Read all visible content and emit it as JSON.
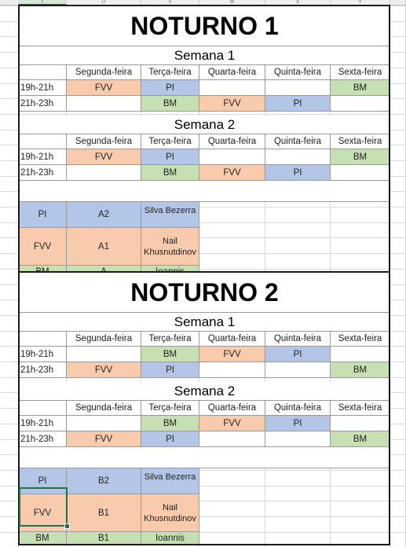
{
  "column_headers": [
    "T",
    "U",
    "V",
    "W",
    "X",
    "Y"
  ],
  "day_headers": [
    "Segunda-feira",
    "Terça-feira",
    "Quarta-feira",
    "Quinta-feira",
    "Sexta-feira"
  ],
  "time_slots": [
    "19h-21h",
    "21h-23h"
  ],
  "colors": {
    "orange": "#f8cbad",
    "blue": "#b4c6e7",
    "green": "#c6e0b4"
  },
  "sections": [
    {
      "title": "NOTURNO 1",
      "weeks": [
        {
          "label": "Semana 1",
          "rows": [
            [
              "FVV",
              "PI",
              "",
              "",
              "BM"
            ],
            [
              "",
              "BM",
              "FVV",
              "PI",
              ""
            ]
          ]
        },
        {
          "label": "Semana 2",
          "rows": [
            [
              "FVV",
              "PI",
              "",
              "",
              "BM"
            ],
            [
              "",
              "BM",
              "FVV",
              "PI",
              ""
            ]
          ]
        }
      ],
      "legend": [
        {
          "code": "PI",
          "room": "A2",
          "teacher": "Luiz Carlos da Silva Bezerra"
        },
        {
          "code": "FVV",
          "room": "A1",
          "teacher": "Nail Khusnutdinov"
        },
        {
          "code": "BM",
          "room": "A",
          "teacher": "Ioannis"
        }
      ]
    },
    {
      "title": "NOTURNO 2",
      "weeks": [
        {
          "label": "Semana 1",
          "rows": [
            [
              "",
              "BM",
              "FVV",
              "PI",
              ""
            ],
            [
              "FVV",
              "PI",
              "",
              "",
              "BM"
            ]
          ]
        },
        {
          "label": "Semana 2",
          "rows": [
            [
              "",
              "BM",
              "FVV",
              "PI",
              ""
            ],
            [
              "FVV",
              "PI",
              "",
              "",
              "BM"
            ]
          ]
        }
      ],
      "legend": [
        {
          "code": "PI",
          "room": "B2",
          "teacher": "Luiz Carlos da Silva Bezerra"
        },
        {
          "code": "FVV",
          "room": "B1",
          "teacher": "Nail Khusnutdinov"
        },
        {
          "code": "BM",
          "room": "B1",
          "teacher": "Ioannis"
        }
      ]
    }
  ]
}
